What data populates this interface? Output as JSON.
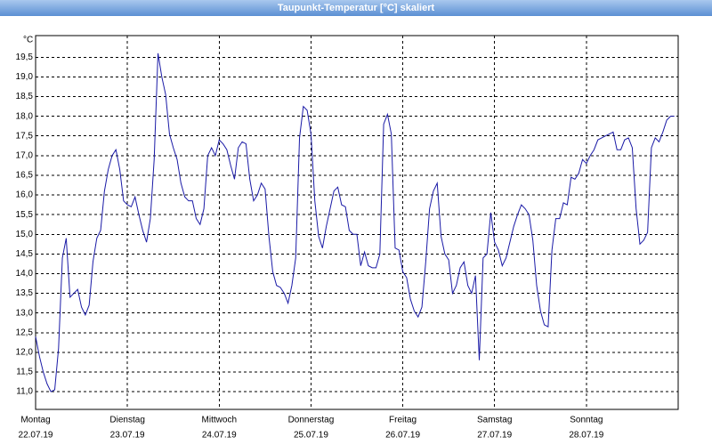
{
  "chart_data": {
    "type": "line",
    "title": "Taupunkt-Temperatur [°C] skaliert",
    "ylabel": "°C",
    "color": "#1a1aa6",
    "grid": true,
    "xlim": [
      0,
      168
    ],
    "ylim": [
      10.55,
      20.05
    ],
    "xticks": [
      {
        "value": 0,
        "label": "Montag"
      },
      {
        "value": 24,
        "label": "Dienstag"
      },
      {
        "value": 48,
        "label": "Mittwoch"
      },
      {
        "value": 72,
        "label": "Donnerstag"
      },
      {
        "value": 96,
        "label": "Freitag"
      },
      {
        "value": 120,
        "label": "Samstag"
      },
      {
        "value": 144,
        "label": "Sonntag"
      }
    ],
    "xtick_dates": [
      "22.07.19",
      "23.07.19",
      "24.07.19",
      "25.07.19",
      "26.07.19",
      "27.07.19",
      "28.07.19"
    ],
    "yticks": [
      {
        "value": 11,
        "label": "11,0"
      },
      {
        "value": 11.5,
        "label": "11,5"
      },
      {
        "value": 12,
        "label": "12,0"
      },
      {
        "value": 12.5,
        "label": "12,5"
      },
      {
        "value": 13,
        "label": "13,0"
      },
      {
        "value": 13.5,
        "label": "13,5"
      },
      {
        "value": 14,
        "label": "14,0"
      },
      {
        "value": 14.5,
        "label": "14,5"
      },
      {
        "value": 15,
        "label": "15,0"
      },
      {
        "value": 15.5,
        "label": "15,5"
      },
      {
        "value": 16,
        "label": "16,0"
      },
      {
        "value": 16.5,
        "label": "16,5"
      },
      {
        "value": 17,
        "label": "17,0"
      },
      {
        "value": 17.5,
        "label": "17,5"
      },
      {
        "value": 18,
        "label": "18,0"
      },
      {
        "value": 18.5,
        "label": "18,5"
      },
      {
        "value": 19,
        "label": "19,0"
      },
      {
        "value": 19.5,
        "label": "19,5"
      }
    ],
    "x": [
      0,
      1,
      2,
      3,
      4,
      5,
      6,
      7,
      8,
      9,
      10,
      11,
      12,
      13,
      14,
      15,
      16,
      17,
      18,
      19,
      20,
      21,
      22,
      23,
      24,
      25,
      26,
      27,
      28,
      29,
      30,
      31,
      32,
      33,
      34,
      35,
      36,
      37,
      38,
      39,
      40,
      41,
      42,
      43,
      44,
      45,
      46,
      47,
      48,
      49,
      50,
      51,
      52,
      53,
      54,
      55,
      56,
      57,
      58,
      59,
      60,
      61,
      62,
      63,
      64,
      65,
      66,
      67,
      68,
      69,
      70,
      71,
      72,
      73,
      74,
      75,
      76,
      77,
      78,
      79,
      80,
      81,
      82,
      83,
      84,
      85,
      86,
      87,
      88,
      89,
      90,
      91,
      92,
      93,
      94,
      95,
      96,
      97,
      98,
      99,
      100,
      101,
      102,
      103,
      104,
      105,
      106,
      107,
      108,
      109,
      110,
      111,
      112,
      113,
      114,
      115,
      116,
      117,
      118,
      119,
      120,
      121,
      122,
      123,
      124,
      125,
      126,
      127,
      128,
      129,
      130,
      131,
      132,
      133,
      134,
      135,
      136,
      137,
      138,
      139,
      140,
      141,
      142,
      143,
      144,
      145,
      146,
      147,
      148,
      149,
      150,
      151,
      152,
      153,
      154,
      155,
      156,
      157,
      158,
      159,
      160,
      161,
      162,
      163,
      164,
      165,
      166,
      167
    ],
    "values": [
      12.4,
      11.9,
      11.5,
      11.2,
      11.0,
      11.05,
      12.1,
      14.4,
      14.9,
      13.4,
      13.5,
      13.6,
      13.15,
      12.95,
      13.2,
      14.3,
      14.9,
      15.1,
      16.1,
      16.65,
      17.0,
      17.15,
      16.65,
      15.85,
      15.75,
      15.7,
      15.95,
      15.5,
      15.1,
      14.8,
      15.4,
      16.9,
      19.6,
      19.0,
      18.55,
      17.55,
      17.2,
      16.9,
      16.3,
      15.95,
      15.85,
      15.85,
      15.4,
      15.25,
      15.65,
      17.0,
      17.2,
      17.0,
      17.4,
      17.3,
      17.15,
      16.75,
      16.4,
      17.2,
      17.35,
      17.3,
      16.4,
      15.85,
      16.0,
      16.3,
      16.15,
      14.95,
      14.05,
      13.7,
      13.65,
      13.5,
      13.25,
      13.7,
      14.4,
      17.45,
      18.25,
      18.15,
      17.55,
      15.85,
      14.95,
      14.65,
      15.2,
      15.65,
      16.1,
      16.2,
      15.75,
      15.7,
      15.1,
      15.0,
      15.0,
      14.2,
      14.55,
      14.2,
      14.15,
      14.15,
      14.5,
      17.8,
      18.05,
      17.55,
      14.65,
      14.6,
      14.05,
      13.9,
      13.35,
      13.05,
      12.9,
      13.15,
      14.3,
      15.65,
      16.1,
      16.3,
      14.95,
      14.5,
      14.35,
      13.5,
      13.7,
      14.15,
      14.3,
      13.7,
      13.5,
      13.95,
      11.8,
      14.4,
      14.5,
      15.55,
      14.8,
      14.6,
      14.2,
      14.4,
      14.8,
      15.2,
      15.5,
      15.75,
      15.65,
      15.5,
      14.85,
      13.7,
      13.05,
      12.7,
      12.65,
      14.6,
      15.4,
      15.4,
      15.8,
      15.75,
      16.45,
      16.4,
      16.55,
      16.9,
      16.8,
      17.0,
      17.15,
      17.4,
      17.45,
      17.5,
      17.55,
      17.6,
      17.15,
      17.15,
      17.4,
      17.45,
      17.2,
      15.65,
      14.75,
      14.85,
      15.05,
      17.2,
      17.45,
      17.35,
      17.6,
      17.9,
      18.0,
      18.0
    ]
  }
}
